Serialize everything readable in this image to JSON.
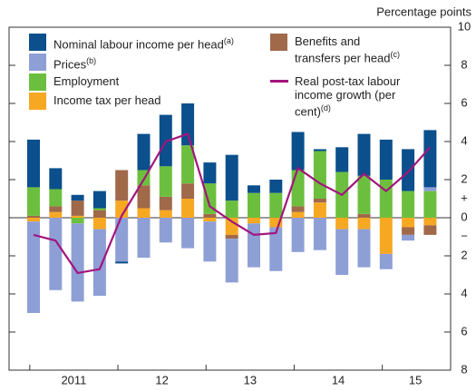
{
  "chart_data": {
    "type": "bar",
    "y_axis_label": "Percentage points",
    "sign_labels": [
      "+",
      "−"
    ],
    "categories": [
      null,
      null,
      null,
      null,
      null,
      null,
      null,
      null,
      null,
      null,
      null,
      null,
      null,
      null,
      null,
      null,
      null,
      null,
      null
    ],
    "year_labels": [
      "2011",
      "12",
      "13",
      "14",
      "15"
    ],
    "ylim": [
      -8,
      10
    ],
    "yticks": [
      {
        "value": -8,
        "label": "8"
      },
      {
        "value": -6,
        "label": "6"
      },
      {
        "value": -4,
        "label": "4"
      },
      {
        "value": -2,
        "label": "2"
      },
      0,
      2,
      4,
      6,
      8,
      10
    ],
    "series": [
      {
        "name": "Nominal labour income per head",
        "note": "(a)",
        "color": "#0b4f8c",
        "values": [
          2.5,
          1.1,
          0.3,
          0.9,
          -0.1,
          1.9,
          2.7,
          2.2,
          1.1,
          2.4,
          0.4,
          0.7,
          2.0,
          0.1,
          1.3,
          2.2,
          2.1,
          2.2,
          3.0
        ]
      },
      {
        "name": "Prices",
        "note": "(b)",
        "color": "#8e9fd6",
        "values": [
          -4.8,
          -3.8,
          -4.1,
          -3.5,
          -2.3,
          -2.1,
          -1.3,
          -1.6,
          -2.1,
          -2.3,
          -2.3,
          -2.3,
          -1.8,
          -1.7,
          -2.4,
          -2.0,
          -0.8,
          -0.3,
          0.2
        ]
      },
      {
        "name": "Employment",
        "note": "",
        "color": "#6cbf3e",
        "values": [
          1.5,
          0.9,
          -0.3,
          0.1,
          0.0,
          0.8,
          1.6,
          2.0,
          1.6,
          0.9,
          1.3,
          1.3,
          1.9,
          2.5,
          2.4,
          2.0,
          2.0,
          1.4,
          1.4
        ]
      },
      {
        "name": "Income tax per head",
        "note": "",
        "color": "#f7a823",
        "values": [
          -0.2,
          0.3,
          0.1,
          -0.6,
          0.9,
          0.5,
          0.4,
          1.0,
          -0.2,
          -0.9,
          -0.3,
          -0.5,
          0.3,
          0.8,
          -0.6,
          -0.6,
          -1.9,
          -0.5,
          -0.4
        ]
      },
      {
        "name": "Benefits and transfers per head",
        "note": "(c)",
        "color": "#a0694a",
        "values": [
          0.1,
          0.3,
          0.8,
          0.4,
          1.6,
          1.2,
          0.7,
          0.8,
          0.2,
          -0.2,
          0.0,
          0.0,
          0.3,
          0.2,
          0.0,
          0.2,
          0.0,
          -0.4,
          -0.5
        ]
      },
      {
        "name": "Real post-tax labour income growth (per cent)",
        "note": "(d)",
        "color": "#a3157d",
        "kind": "line",
        "values": [
          -0.9,
          -1.2,
          -2.9,
          -2.7,
          0.1,
          2.0,
          4.0,
          4.4,
          0.6,
          -0.2,
          -0.9,
          -0.8,
          2.6,
          1.8,
          1.2,
          2.3,
          1.4,
          2.4,
          3.7
        ]
      }
    ]
  }
}
